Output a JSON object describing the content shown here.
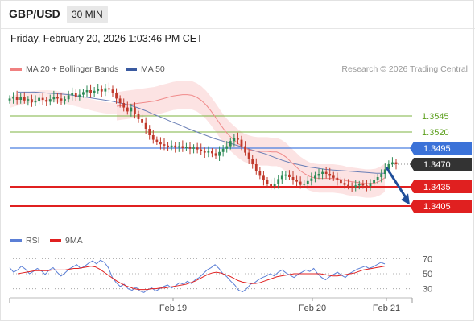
{
  "header": {
    "symbol": "GBP/USD",
    "timeframe": "30 MIN"
  },
  "timestamp": "Friday, February 20, 2026 1:03:46 PM CET",
  "credit": "Research © 2026 Trading Central",
  "legend": [
    {
      "label": "MA 20 + Bollinger Bands",
      "color": "#f08080"
    },
    {
      "label": "MA 50",
      "color": "#3a5aa0"
    }
  ],
  "rsi_legend": [
    {
      "label": "RSI",
      "color": "#5b7fd6"
    },
    {
      "label": "9MA",
      "color": "#e02020"
    }
  ],
  "colors": {
    "up": "#2e8b57",
    "down": "#c0392b",
    "support": "#e02020",
    "pivot": "#4a7fe0",
    "target": "#7cb342",
    "arrow": "#1f4e9a",
    "current": "#333333"
  },
  "chart_data": [
    {
      "type": "candlestick",
      "ylim": [
        1.3385,
        1.36
      ],
      "x_ticks": [
        "Feb 19",
        "Feb 20",
        "Feb 21"
      ],
      "levels": [
        {
          "value": 1.3545,
          "label": "1.3545",
          "kind": "resistance"
        },
        {
          "value": 1.352,
          "label": "1.3520",
          "kind": "resistance"
        },
        {
          "value": 1.3495,
          "label": "1.3495",
          "kind": "pivot"
        },
        {
          "value": 1.347,
          "label": "1.3470",
          "kind": "current"
        },
        {
          "value": 1.3435,
          "label": "1.3435",
          "kind": "support"
        },
        {
          "value": 1.3405,
          "label": "1.3405",
          "kind": "support"
        }
      ],
      "closes": [
        1.3572,
        1.3575,
        1.357,
        1.3574,
        1.3569,
        1.3571,
        1.3566,
        1.3568,
        1.3573,
        1.357,
        1.3567,
        1.3571,
        1.3575,
        1.3572,
        1.3569,
        1.3571,
        1.3577,
        1.358,
        1.3575,
        1.3578,
        1.3582,
        1.3585,
        1.358,
        1.3584,
        1.3587,
        1.3583,
        1.3588,
        1.3586,
        1.358,
        1.3572,
        1.3565,
        1.3558,
        1.3552,
        1.3558,
        1.3548,
        1.354,
        1.3534,
        1.3525,
        1.3515,
        1.3508,
        1.3505,
        1.3501,
        1.3499,
        1.3497,
        1.3499,
        1.3496,
        1.3498,
        1.3495,
        1.3497,
        1.3494,
        1.3496,
        1.3493,
        1.349,
        1.3488,
        1.349,
        1.3487,
        1.3483,
        1.3489,
        1.3494,
        1.3498,
        1.3506,
        1.351,
        1.3508,
        1.3498,
        1.3488,
        1.3478,
        1.347,
        1.346,
        1.3452,
        1.3445,
        1.344,
        1.3436,
        1.344,
        1.3447,
        1.3452,
        1.3454,
        1.345,
        1.3446,
        1.3443,
        1.3438,
        1.344,
        1.3444,
        1.3448,
        1.3452,
        1.3455,
        1.3458,
        1.3455,
        1.3452,
        1.3449,
        1.3445,
        1.3441,
        1.3438,
        1.3436,
        1.3435,
        1.3437,
        1.3439,
        1.3437,
        1.3436,
        1.3441,
        1.3445,
        1.345,
        1.3455,
        1.3462,
        1.347,
        1.3473,
        1.347
      ],
      "ma20": [
        1.356,
        1.3561,
        1.3562,
        1.3563,
        1.3564,
        1.3565,
        1.3566,
        1.3567,
        1.3568,
        1.357,
        1.3572,
        1.3574,
        1.3576,
        1.3577,
        1.3578,
        1.3578,
        1.3577,
        1.3574,
        1.3569,
        1.3562,
        1.3553,
        1.3543,
        1.3532,
        1.3522,
        1.3514,
        1.3507,
        1.3501,
        1.3496,
        1.3493,
        1.3491,
        1.349,
        1.349,
        1.349,
        1.3489,
        1.3489,
        1.3486,
        1.3481,
        1.3474,
        1.3467,
        1.346,
        1.3455,
        1.3451,
        1.3449,
        1.3448,
        1.3448,
        1.3448,
        1.3448,
        1.3447,
        1.3446,
        1.3444,
        1.3443,
        1.3442,
        1.3441,
        1.344,
        1.344,
        1.3441,
        1.3444,
        1.3449
      ],
      "ma50": [
        1.3582,
        1.3582,
        1.3582,
        1.3581,
        1.358,
        1.3579,
        1.3578,
        1.3576,
        1.3574,
        1.3572,
        1.357,
        1.3568,
        1.3565,
        1.3562,
        1.3558,
        1.3553,
        1.3547,
        1.3542,
        1.3536,
        1.3531,
        1.3525,
        1.352,
        1.3515,
        1.351,
        1.3506,
        1.3502,
        1.3498,
        1.3494,
        1.349,
        1.3486,
        1.3481,
        1.3476,
        1.3472,
        1.3469,
        1.3466,
        1.3464,
        1.3462,
        1.3461,
        1.346,
        1.3459,
        1.3458,
        1.3457,
        1.3456,
        1.3456
      ]
    },
    {
      "type": "line",
      "title": "RSI",
      "ylim": [
        20,
        80
      ],
      "y_ticks": [
        70,
        50,
        30
      ],
      "rsi": [
        58,
        52,
        55,
        60,
        56,
        50,
        53,
        57,
        54,
        49,
        55,
        58,
        52,
        47,
        51,
        56,
        59,
        62,
        57,
        60,
        64,
        67,
        63,
        68,
        65,
        58,
        45,
        38,
        33,
        36,
        30,
        28,
        32,
        27,
        25,
        29,
        31,
        27,
        30,
        33,
        35,
        31,
        34,
        38,
        36,
        40,
        37,
        42,
        45,
        50,
        55,
        58,
        62,
        57,
        50,
        46,
        40,
        35,
        28,
        26,
        30,
        36,
        38,
        42,
        45,
        47,
        50,
        47,
        52,
        55,
        51,
        48,
        45,
        49,
        52,
        55,
        53,
        57,
        50,
        45,
        42,
        46,
        49,
        52,
        48,
        45,
        50,
        53,
        56,
        58,
        60,
        57,
        59,
        62,
        65,
        63
      ],
      "ma9": [
        50,
        51,
        52,
        53,
        54,
        54,
        54,
        54,
        55,
        55,
        55,
        55,
        56,
        57,
        57,
        58,
        59,
        60,
        59,
        56,
        52,
        48,
        44,
        40,
        37,
        34,
        32,
        30,
        29,
        29,
        29,
        30,
        30,
        31,
        31,
        32,
        33,
        34,
        35,
        36,
        38,
        40,
        43,
        46,
        49,
        51,
        52,
        51,
        49,
        47,
        44,
        41,
        39,
        38,
        37,
        37,
        38,
        40,
        42,
        44,
        46,
        47,
        48,
        49,
        50,
        50,
        50,
        50,
        50,
        50,
        50,
        49,
        48,
        47,
        47,
        48,
        49,
        50,
        51,
        53,
        55,
        56,
        57,
        58,
        59,
        60
      ]
    }
  ]
}
